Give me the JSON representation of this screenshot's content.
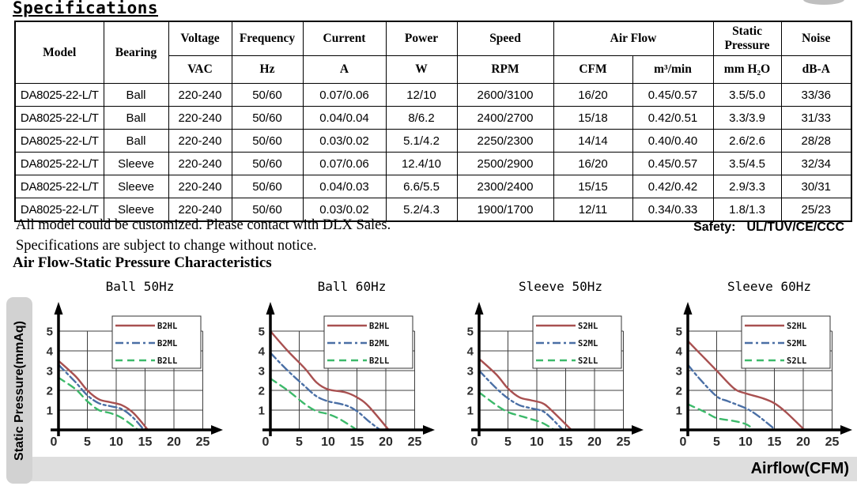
{
  "page": {
    "title": "Specifications"
  },
  "table": {
    "header": {
      "model": "Model",
      "bearing": "Bearing",
      "voltage": "Voltage",
      "voltage_unit": "VAC",
      "frequency": "Frequency",
      "frequency_unit": "Hz",
      "current": "Current",
      "current_unit": "A",
      "power": "Power",
      "power_unit": "W",
      "speed": "Speed",
      "speed_unit": "RPM",
      "airflow": "Air Flow",
      "airflow_unit_cfm": "CFM",
      "airflow_unit_m3": "m³/min",
      "static_pressure": "Static Pressure",
      "static_pressure_unit": "mm H₂O",
      "noise": "Noise",
      "noise_unit": "dB-A"
    },
    "col_keys": [
      "model",
      "bearing",
      "voltage-vac",
      "frequency-hz",
      "current-a",
      "power-w",
      "speed-rpm",
      "airflow-cfm",
      "airflow-m3min",
      "static-pressure-mmh2o",
      "noise-dba"
    ],
    "rows": [
      [
        "DA8025-22-L/T",
        "Ball",
        "220-240",
        "50/60",
        "0.07/0.06",
        "12/10",
        "2600/3100",
        "16/20",
        "0.45/0.57",
        "3.5/5.0",
        "33/36"
      ],
      [
        "DA8025-22-L/T",
        "Ball",
        "220-240",
        "50/60",
        "0.04/0.04",
        "8/6.2",
        "2400/2700",
        "15/18",
        "0.42/0.51",
        "3.3/3.9",
        "31/33"
      ],
      [
        "DA8025-22-L/T",
        "Ball",
        "220-240",
        "50/60",
        "0.03/0.02",
        "5.1/4.2",
        "2250/2300",
        "14/14",
        "0.40/0.40",
        "2.6/2.6",
        "28/28"
      ],
      [
        "DA8025-22-L/T",
        "Sleeve",
        "220-240",
        "50/60",
        "0.07/0.06",
        "12.4/10",
        "2500/2900",
        "16/20",
        "0.45/0.57",
        "3.5/4.5",
        "32/34"
      ],
      [
        "DA8025-22-L/T",
        "Sleeve",
        "220-240",
        "50/60",
        "0.04/0.03",
        "6.6/5.5",
        "2300/2400",
        "15/15",
        "0.42/0.42",
        "2.9/3.3",
        "30/31"
      ],
      [
        "DA8025-22-L/T",
        "Sleeve",
        "220-240",
        "50/60",
        "0.03/0.02",
        "5.2/4.3",
        "1900/1700",
        "12/11",
        "0.34/0.33",
        "1.8/1.3",
        "25/23"
      ]
    ]
  },
  "notes": {
    "line1": "All model could be customized. Please contact with DLX Sales.",
    "line2": "Specifications are subject to change without notice.",
    "safety_label": "Safety:",
    "safety_value": "UL/TUV/CE/CCC"
  },
  "section_title": "Air Flow-Static Pressure Characteristics",
  "charts_axis": {
    "y_label": "Static Pressure(mmAq)",
    "x_label": "Airflow(CFM)"
  },
  "colors": {
    "hl": "#a85050",
    "ml": "#4a6fa5",
    "ll": "#3cb96a",
    "grid": "#3f3f3f",
    "axis": "#000000"
  },
  "chart_data": [
    {
      "type": "line",
      "title": "Ball 50Hz",
      "xlabel": "Airflow(CFM)",
      "ylabel": "Static Pressure(mmAq)",
      "xlim": [
        0,
        25
      ],
      "ylim": [
        0,
        5
      ],
      "x_ticks": [
        0,
        5,
        10,
        15,
        20,
        25
      ],
      "y_ticks": [
        0,
        1,
        2,
        3,
        4,
        5
      ],
      "grid": true,
      "legend_position": "top-right",
      "series": [
        {
          "name": "B2HL",
          "style": "solid",
          "color": "#a85050",
          "points": [
            [
              0,
              3.5
            ],
            [
              3,
              2.7
            ],
            [
              5,
              2.0
            ],
            [
              7,
              1.55
            ],
            [
              9,
              1.4
            ],
            [
              11,
              1.25
            ],
            [
              13,
              0.85
            ],
            [
              15.5,
              0
            ]
          ]
        },
        {
          "name": "B2ML",
          "style": "dashdot",
          "color": "#4a6fa5",
          "points": [
            [
              0,
              3.3
            ],
            [
              3,
              2.4
            ],
            [
              5,
              1.75
            ],
            [
              7,
              1.35
            ],
            [
              9,
              1.2
            ],
            [
              11,
              1.05
            ],
            [
              13,
              0.6
            ],
            [
              14.8,
              0
            ]
          ]
        },
        {
          "name": "B2LL",
          "style": "dashed",
          "color": "#3cb96a",
          "points": [
            [
              0,
              2.65
            ],
            [
              3,
              2.05
            ],
            [
              5,
              1.45
            ],
            [
              7,
              1.0
            ],
            [
              9,
              0.85
            ],
            [
              11,
              0.6
            ],
            [
              13.8,
              0
            ]
          ]
        }
      ]
    },
    {
      "type": "line",
      "title": "Ball 60Hz",
      "xlabel": "Airflow(CFM)",
      "ylabel": "Static Pressure(mmAq)",
      "xlim": [
        0,
        25
      ],
      "ylim": [
        0,
        5
      ],
      "x_ticks": [
        0,
        5,
        10,
        15,
        20,
        25
      ],
      "y_ticks": [
        0,
        1,
        2,
        3,
        4,
        5
      ],
      "grid": true,
      "legend_position": "top-right",
      "series": [
        {
          "name": "B2HL",
          "style": "solid",
          "color": "#a85050",
          "points": [
            [
              0,
              5.0
            ],
            [
              3,
              4.0
            ],
            [
              6,
              3.1
            ],
            [
              8,
              2.4
            ],
            [
              10,
              2.05
            ],
            [
              13,
              1.9
            ],
            [
              15,
              1.65
            ],
            [
              17,
              1.2
            ],
            [
              20.5,
              0
            ]
          ]
        },
        {
          "name": "B2ML",
          "style": "dashdot",
          "color": "#4a6fa5",
          "points": [
            [
              0,
              3.9
            ],
            [
              3,
              3.0
            ],
            [
              6,
              2.2
            ],
            [
              8,
              1.7
            ],
            [
              10,
              1.45
            ],
            [
              13,
              1.25
            ],
            [
              15,
              0.95
            ],
            [
              17,
              0.45
            ],
            [
              19,
              0
            ]
          ]
        },
        {
          "name": "B2LL",
          "style": "dashed",
          "color": "#3cb96a",
          "points": [
            [
              0,
              2.6
            ],
            [
              3,
              2.0
            ],
            [
              6,
              1.3
            ],
            [
              8,
              0.95
            ],
            [
              10,
              0.8
            ],
            [
              12,
              0.55
            ],
            [
              15,
              0
            ]
          ]
        }
      ]
    },
    {
      "type": "line",
      "title": "Sleeve 50Hz",
      "xlabel": "Airflow(CFM)",
      "ylabel": "Static Pressure(mmAq)",
      "xlim": [
        0,
        25
      ],
      "ylim": [
        0,
        5
      ],
      "x_ticks": [
        0,
        5,
        10,
        15,
        20,
        25
      ],
      "y_ticks": [
        0,
        1,
        2,
        3,
        4,
        5
      ],
      "grid": true,
      "legend_position": "top-right",
      "series": [
        {
          "name": "S2HL",
          "style": "solid",
          "color": "#a85050",
          "points": [
            [
              0,
              3.6
            ],
            [
              3,
              2.8
            ],
            [
              5,
              2.1
            ],
            [
              7,
              1.65
            ],
            [
              9,
              1.5
            ],
            [
              11,
              1.35
            ],
            [
              12.5,
              1.0
            ],
            [
              16,
              0
            ]
          ]
        },
        {
          "name": "S2ML",
          "style": "dashdot",
          "color": "#4a6fa5",
          "points": [
            [
              0,
              3.0
            ],
            [
              3,
              2.1
            ],
            [
              5,
              1.6
            ],
            [
              7,
              1.25
            ],
            [
              9,
              1.1
            ],
            [
              11,
              0.95
            ],
            [
              12.5,
              0.6
            ],
            [
              14.5,
              0
            ]
          ]
        },
        {
          "name": "S2LL",
          "style": "dashed",
          "color": "#3cb96a",
          "points": [
            [
              0,
              1.9
            ],
            [
              3,
              1.25
            ],
            [
              5,
              0.9
            ],
            [
              7,
              0.72
            ],
            [
              9,
              0.55
            ],
            [
              11,
              0.35
            ],
            [
              13,
              0
            ]
          ]
        }
      ]
    },
    {
      "type": "line",
      "title": "Sleeve 60Hz",
      "xlabel": "Airflow(CFM)",
      "ylabel": "Static Pressure(mmAq)",
      "xlim": [
        0,
        25
      ],
      "ylim": [
        0,
        5
      ],
      "x_ticks": [
        0,
        5,
        10,
        15,
        20,
        25
      ],
      "y_ticks": [
        0,
        1,
        2,
        3,
        4,
        5
      ],
      "grid": true,
      "legend_position": "top-right",
      "series": [
        {
          "name": "S2HL",
          "style": "solid",
          "color": "#a85050",
          "points": [
            [
              0,
              4.5
            ],
            [
              3,
              3.6
            ],
            [
              5,
              3.0
            ],
            [
              8,
              2.1
            ],
            [
              10,
              1.85
            ],
            [
              13,
              1.6
            ],
            [
              15,
              1.35
            ],
            [
              17,
              0.9
            ],
            [
              20.2,
              0
            ]
          ]
        },
        {
          "name": "S2ML",
          "style": "dashdot",
          "color": "#4a6fa5",
          "points": [
            [
              0,
              3.3
            ],
            [
              2,
              2.6
            ],
            [
              5,
              1.7
            ],
            [
              7,
              1.45
            ],
            [
              10,
              1.1
            ],
            [
              12,
              0.75
            ],
            [
              15,
              0.05
            ]
          ]
        },
        {
          "name": "S2LL",
          "style": "dashed",
          "color": "#3cb96a",
          "points": [
            [
              0,
              1.3
            ],
            [
              3,
              0.9
            ],
            [
              5,
              0.6
            ],
            [
              8,
              0.45
            ],
            [
              10,
              0.3
            ],
            [
              11,
              0.12
            ]
          ]
        }
      ]
    }
  ]
}
